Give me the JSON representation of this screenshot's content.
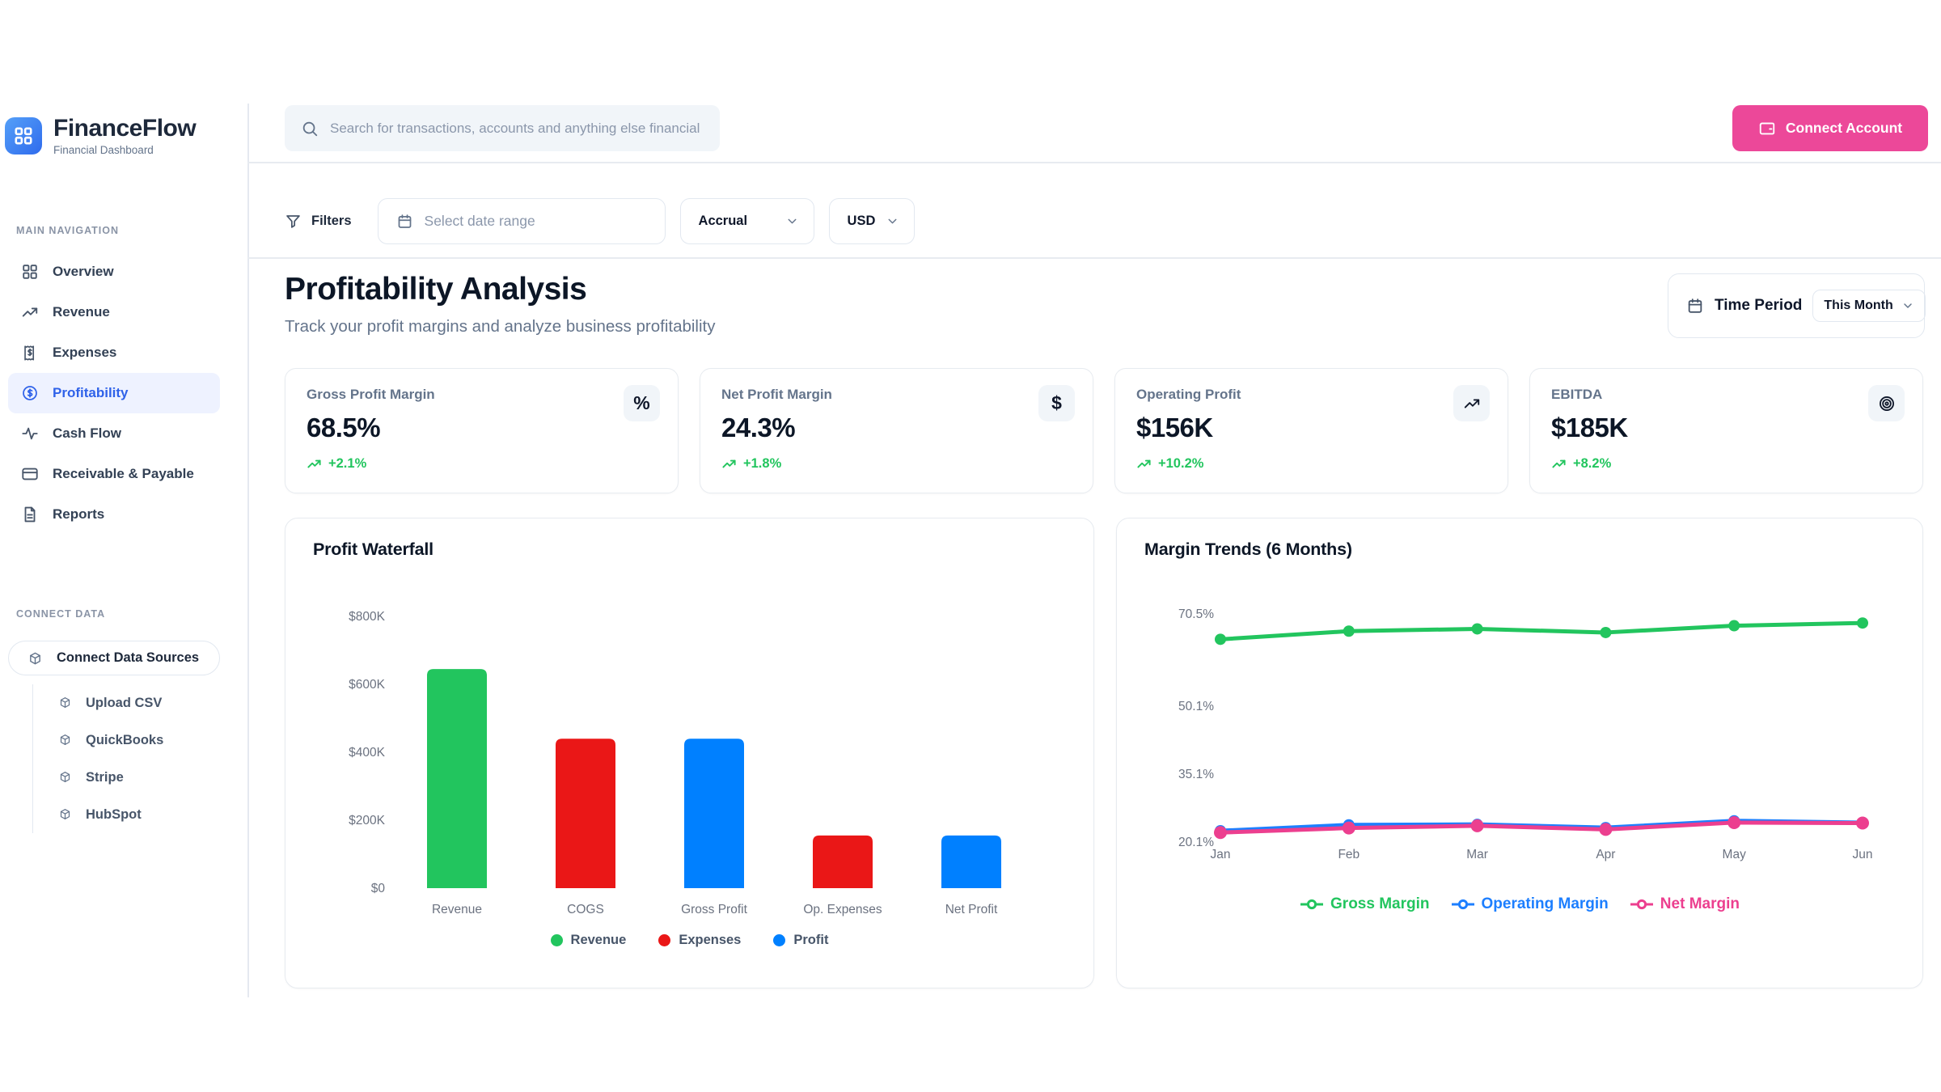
{
  "brand": {
    "name": "FinanceFlow",
    "tagline": "Financial Dashboard",
    "logo_icon": "grid"
  },
  "header": {
    "search_placeholder": "Search for transactions, accounts and anything else financial",
    "connect_account_label": "Connect Account",
    "connect_account_color": "#ec4899"
  },
  "filters": {
    "label": "Filters",
    "date_range_placeholder": "Select date range",
    "basis_value": "Accrual",
    "currency_value": "USD"
  },
  "sidebar": {
    "nav_label": "MAIN NAVIGATION",
    "items": [
      {
        "label": "Overview",
        "icon": "grid",
        "active": false
      },
      {
        "label": "Revenue",
        "icon": "trend-up",
        "active": false
      },
      {
        "label": "Expenses",
        "icon": "receipt",
        "active": false
      },
      {
        "label": "Profitability",
        "icon": "dollar-circle",
        "active": true
      },
      {
        "label": "Cash Flow",
        "icon": "activity",
        "active": false
      },
      {
        "label": "Receivable & Payable",
        "icon": "credit-card",
        "active": false
      },
      {
        "label": "Reports",
        "icon": "file",
        "active": false
      }
    ],
    "active_color": "#2f62e9",
    "connect_label": "CONNECT DATA",
    "connect_button": {
      "label": "Connect Data Sources",
      "icon": "cube"
    },
    "connect_items": [
      {
        "label": "Upload CSV",
        "icon": "cube"
      },
      {
        "label": "QuickBooks",
        "icon": "cube"
      },
      {
        "label": "Stripe",
        "icon": "cube"
      },
      {
        "label": "HubSpot",
        "icon": "cube"
      }
    ]
  },
  "page": {
    "title": "Profitability Analysis",
    "subtitle": "Track your profit margins and analyze business profitability",
    "time_period_label": "Time Period",
    "time_period_value": "This Month"
  },
  "kpis": [
    {
      "label": "Gross Profit Margin",
      "value": "68.5%",
      "delta": "+2.1%",
      "icon": "percent"
    },
    {
      "label": "Net Profit Margin",
      "value": "24.3%",
      "delta": "+1.8%",
      "icon": "dollar"
    },
    {
      "label": "Operating Profit",
      "value": "$156K",
      "delta": "+10.2%",
      "icon": "trend-up"
    },
    {
      "label": "EBITDA",
      "value": "$185K",
      "delta": "+8.2%",
      "icon": "target"
    }
  ],
  "positive_color": "#22c55e",
  "chart_data": [
    {
      "type": "bar",
      "title": "Profit Waterfall",
      "categories": [
        "Revenue",
        "COGS",
        "Gross Profit",
        "Op. Expenses",
        "Net Profit"
      ],
      "values": [
        645000,
        440000,
        440000,
        155000,
        155000
      ],
      "bar_colors": [
        "#22c55e",
        "#ea1717",
        "#0080ff",
        "#ea1717",
        "#0080ff"
      ],
      "ylim": [
        0,
        800000
      ],
      "y_ticks": [
        {
          "label": "$0",
          "value": 0
        },
        {
          "label": "$200K",
          "value": 200000
        },
        {
          "label": "$400K",
          "value": 400000
        },
        {
          "label": "$600K",
          "value": 600000
        },
        {
          "label": "$800K",
          "value": 800000
        }
      ],
      "grid": false,
      "legend": {
        "position": "bottom",
        "items": [
          {
            "label": "Revenue",
            "color": "#22c55e"
          },
          {
            "label": "Expenses",
            "color": "#ea1717"
          },
          {
            "label": "Profit",
            "color": "#0080ff"
          }
        ]
      }
    },
    {
      "type": "line",
      "title": "Margin Trends (6 Months)",
      "x": [
        "Jan",
        "Feb",
        "Mar",
        "Apr",
        "May",
        "Jun"
      ],
      "ylim": [
        20.1,
        70.5
      ],
      "y_ticks": [
        {
          "label": "70.5%",
          "value": 70.5
        },
        {
          "label": "50.1%",
          "value": 50.1
        },
        {
          "label": "35.1%",
          "value": 35.1
        },
        {
          "label": "20.1%",
          "value": 20.1
        }
      ],
      "grid": false,
      "legend": {
        "position": "bottom"
      },
      "series": [
        {
          "name": "Gross Margin",
          "color": "#22c55e",
          "values": [
            64.9,
            66.7,
            67.2,
            66.4,
            67.9,
            68.5
          ]
        },
        {
          "name": "Operating Margin",
          "color": "#1d7fff",
          "values": [
            22.6,
            23.9,
            24.0,
            23.3,
            24.8,
            24.4
          ]
        },
        {
          "name": "Net Margin",
          "color": "#ec3f8f",
          "values": [
            22.2,
            23.2,
            23.7,
            22.9,
            24.4,
            24.3
          ]
        }
      ]
    }
  ]
}
